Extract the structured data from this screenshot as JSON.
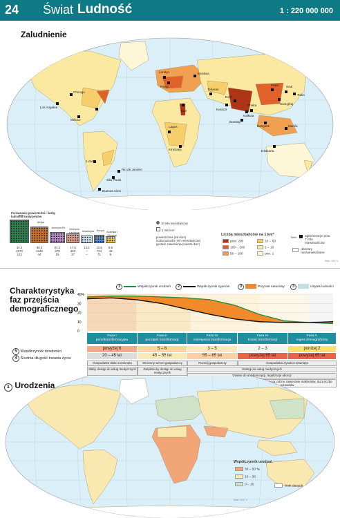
{
  "header": {
    "page_number": "24",
    "title_1": "Świat",
    "title_2": "Ludność",
    "scale": "1 : 220 000 000"
  },
  "section1": {
    "title": "Zaludnienie",
    "cities": [
      "Chicago",
      "Los Angeles",
      "México",
      "Lima",
      "Lagos",
      "Kinszasa",
      "Rio de Janeiro",
      "São Paulo",
      "Buenos Aires",
      "Londyn",
      "Paryż",
      "Moskwa",
      "Kair",
      "Teheran",
      "Karaczi",
      "Delhi",
      "Bombaj",
      "Kalkuta",
      "Dhaka",
      "Bangkok",
      "Dżakarta",
      "Manila",
      "Szanghaj",
      "Pekin",
      "Tokio",
      "Seul"
    ],
    "comparison": {
      "title": "Porównanie powierzchni i liczby ludności kontynentów",
      "continents": [
        {
          "name": "Azja",
          "area": "44,4",
          "pop": "4570",
          "dens": "103",
          "color": "#2f7f4f"
        },
        {
          "name": "Afryka",
          "area": "30,3",
          "pop": "1345",
          "dens": "44",
          "color": "#c9712f"
        },
        {
          "name": "Ameryka Pn.",
          "area": "24,2",
          "pop": "370",
          "dens": "15",
          "color": "#b88fc7"
        },
        {
          "name": "Ameryka Łacińska",
          "area": "17,8",
          "pop": "663",
          "dens": "37",
          "color": "#e09a88"
        },
        {
          "name": "Antarktyda",
          "area": "13,1",
          "pop": "–",
          "dens": "–",
          "color": "#cfe3ee"
        },
        {
          "name": "Europa",
          "area": "10,5",
          "pop": "744",
          "dens": "71",
          "color": "#5a8fd0"
        },
        {
          "name": "Australia i Oceania",
          "area": "8,5",
          "pop": "42",
          "dens": "5",
          "color": "#e6c94a"
        }
      ],
      "key_1": "10 mln mieszkańców",
      "key_2": "1 mln km²",
      "key_3": "powierzchnia (mln km²)",
      "key_4": "liczba ludności (mln mieszkańców)",
      "key_5": "gęstość zaludnienia (mieszk./km²)"
    },
    "legend": {
      "title": "Liczba mieszkańców na 1 km²",
      "items": [
        {
          "label": "pow. 200",
          "color": "#b03418"
        },
        {
          "label": "100 – 200",
          "color": "#e0622a"
        },
        {
          "label": "50 – 100",
          "color": "#f0a050"
        },
        {
          "label": "10 – 50",
          "color": "#f7cf6a"
        },
        {
          "label": "1 – 10",
          "color": "#fbe9a2"
        },
        {
          "label": "pon. 1",
          "color": "#fdf7d8"
        }
      ],
      "agglomeration": "aglomeracje pow. 7 mln mieszkańców",
      "tokio": "Tokio",
      "uninhabited": "obszary niezamieszkane",
      "source": "Stan: 2017 r."
    }
  },
  "section2": {
    "title_1": "Charakterystyka",
    "title_2": "faz przejścia",
    "title_3": "demograficznego",
    "chart_legend": [
      {
        "num": "1",
        "label": "Współczynnik urodzeń"
      },
      {
        "num": "2",
        "label": "Współczynnik zgonów"
      },
      {
        "num": "3",
        "label": "Przyrost naturalny"
      },
      {
        "num": "3",
        "label": "Ubytek ludności"
      }
    ],
    "chart_data": {
      "type": "line",
      "ylabel": "",
      "yticks": [
        "40%",
        "30",
        "20",
        "10",
        "0"
      ],
      "x": [
        0,
        1,
        2,
        3,
        4,
        5,
        6,
        7,
        8,
        9,
        10
      ],
      "series": [
        {
          "name": "Współczynnik urodzeń",
          "values": [
            37,
            38,
            38,
            37,
            36,
            34,
            28,
            18,
            11,
            9,
            8
          ]
        },
        {
          "name": "Współczynnik zgonów",
          "values": [
            35,
            36,
            34,
            30,
            24,
            18,
            13,
            10,
            9,
            9,
            10
          ]
        }
      ]
    },
    "phases": [
      {
        "name": "Faza I",
        "sub": "przedtransformacyjna",
        "children": "powyżej 6",
        "life": "20 – 45 lat",
        "child_color": "#f5a98f",
        "life_color": "#ddd"
      },
      {
        "name": "Faza II",
        "sub": "początek transformacji",
        "children": "5 – 6",
        "life": "45 – 55 lat",
        "child_color": "#f9d79a",
        "life_color": "#f9e8b8"
      },
      {
        "name": "Faza III",
        "sub": "intensywna transformacja",
        "children": "3 – 5",
        "life": "55 – 65 lat",
        "child_color": "#fbe8b8",
        "life_color": "#fbd0a5"
      },
      {
        "name": "Faza IV",
        "sub": "koniec transformacji",
        "children": "2 – 3",
        "life": "powyżej 65 lat",
        "child_color": "#f2f2f2",
        "life_color": "#e8634a"
      },
      {
        "name": "Faza V",
        "sub": "regres demograficzny",
        "children": "poniżej 2",
        "life": "powyżej 65 lat",
        "child_color": "#fbe070",
        "life_color": "#e8634a"
      }
    ],
    "row_label_children": "Współczynnik dzietności",
    "row_label_life": "Średnia długość trwania życia",
    "row_num_children": "5",
    "row_num_life": "4",
    "boxes": [
      "Gospodarka słabo rozwinięta",
      "Wczesny wzrost gospodarczy",
      "Rozwój gospodarczy",
      "Gospodarka wysoko rozwinięta",
      "Słaby dostęp do usług medycznych",
      "Zwiększony dostęp do usług medycznych",
      "Dostęp do usług medycznych",
      "Poprawa wyżywienia",
      "Dostęp do antykoncepcji, legalizacja aborcji",
      "Konsumpcyjny styl życia, późne zawieranie małżeństw, duża liczba rozwodów"
    ]
  },
  "section3": {
    "title": "Urodzenia",
    "num": "1",
    "legend": {
      "title": "Współczynnik urodzeń",
      "items": [
        {
          "label": "30 – 50 ‰",
          "color": "#f2a577"
        },
        {
          "label": "10 – 30",
          "color": "#f9e8b0"
        },
        {
          "label": "0 – 10",
          "color": "#cfe3c9"
        }
      ],
      "nodata": "brak danych",
      "source": "Stan: 2017 r."
    }
  }
}
